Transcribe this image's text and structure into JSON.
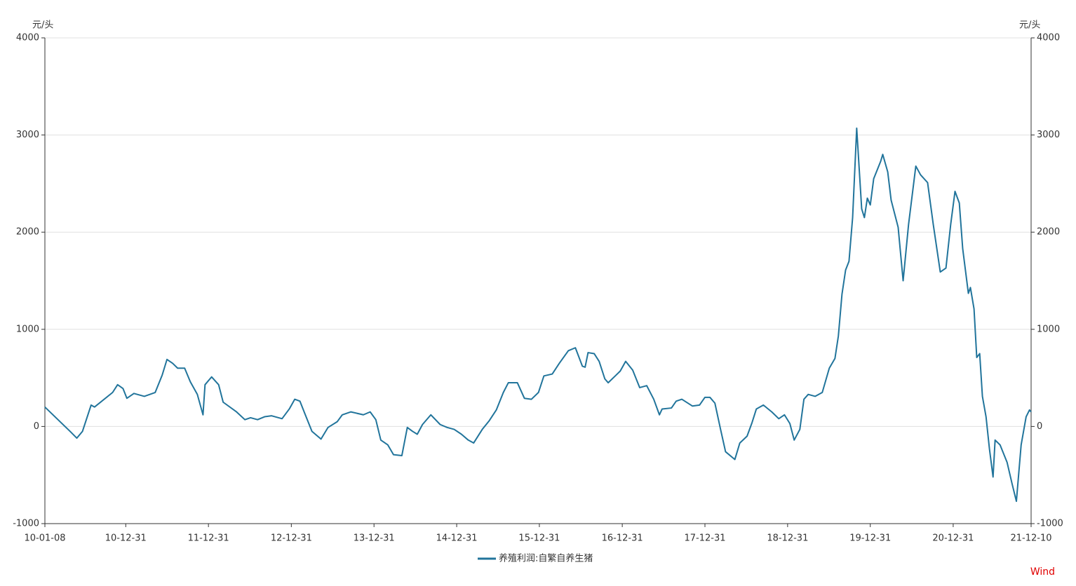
{
  "chart_data": {
    "type": "line",
    "y_label": "元/头",
    "y2_label": "元/头",
    "watermark": "Wind",
    "x": [
      "10-01-08",
      "10-04-29",
      "10-05-29",
      "10-06-23",
      "10-07-31",
      "10-08-15",
      "10-11-03",
      "10-11-25",
      "10-12-19",
      "11-01-05",
      "11-02-05",
      "11-03-23",
      "11-05-10",
      "11-06-10",
      "11-07-01",
      "11-07-26",
      "11-08-17",
      "11-09-17",
      "11-10-12",
      "11-11-12",
      "11-12-07",
      "11-12-16",
      "12-01-14",
      "12-02-14",
      "12-03-05",
      "12-05-03",
      "12-06-09",
      "12-07-04",
      "12-08-04",
      "12-09-04",
      "12-10-05",
      "12-11-20",
      "12-12-22",
      "13-01-15",
      "13-02-07",
      "13-03-01",
      "13-04-01",
      "13-05-11",
      "13-06-11",
      "13-07-22",
      "13-08-13",
      "13-09-20",
      "13-11-14",
      "13-12-14",
      "14-01-08",
      "14-01-30",
      "14-03-02",
      "14-03-27",
      "14-05-03",
      "14-05-27",
      "14-06-19",
      "14-07-10",
      "14-08-02",
      "14-09-08",
      "14-10-19",
      "14-11-19",
      "14-12-20",
      "15-01-21",
      "15-02-20",
      "15-03-16",
      "15-04-23",
      "15-05-24",
      "15-06-24",
      "15-07-25",
      "15-08-16",
      "15-09-25",
      "15-10-26",
      "15-11-26",
      "15-12-27",
      "16-01-20",
      "16-02-26",
      "16-03-28",
      "16-05-07",
      "16-06-07",
      "16-07-08",
      "16-07-20",
      "16-08-02",
      "16-08-29",
      "16-09-20",
      "16-10-15",
      "16-10-30",
      "16-11-30",
      "16-12-22",
      "17-01-15",
      "17-02-15",
      "17-03-18",
      "17-04-18",
      "17-05-19",
      "17-06-13",
      "17-06-25",
      "17-08-05",
      "17-08-26",
      "17-09-20",
      "17-11-06",
      "17-12-07",
      "17-12-31",
      "18-01-22",
      "18-02-13",
      "18-03-10",
      "18-04-01",
      "18-05-12",
      "18-06-03",
      "18-07-05",
      "18-07-27",
      "18-08-15",
      "18-09-15",
      "18-10-22",
      "18-11-22",
      "18-12-17",
      "19-01-10",
      "19-01-29",
      "19-02-23",
      "19-03-13",
      "19-04-01",
      "19-05-02",
      "19-06-02",
      "19-07-03",
      "19-07-28",
      "19-08-12",
      "19-08-28",
      "19-09-13",
      "19-09-28",
      "19-10-14",
      "19-11-01",
      "19-11-23",
      "19-12-05",
      "19-12-18",
      "19-12-31",
      "20-01-15",
      "20-02-15",
      "20-02-24",
      "20-03-17",
      "20-04-01",
      "20-05-02",
      "20-05-24",
      "20-06-17",
      "20-07-19",
      "20-08-09",
      "20-09-09",
      "20-10-04",
      "20-11-04",
      "20-11-29",
      "20-12-20",
      "21-01-08",
      "21-01-27",
      "21-02-11",
      "21-03-08",
      "21-03-17",
      "21-04-02",
      "21-04-14",
      "21-04-27",
      "21-05-09",
      "21-05-25",
      "21-06-09",
      "21-06-25",
      "21-07-04",
      "21-07-26",
      "21-08-26",
      "21-09-17",
      "21-10-06",
      "21-10-27",
      "21-11-18",
      "21-12-03",
      "21-12-10"
    ],
    "series": [
      {
        "name": "养殖利润:自繁自养生猪",
        "color": "#21749b",
        "values": [
          200,
          -50,
          -120,
          -50,
          220,
          200,
          350,
          430,
          390,
          290,
          340,
          310,
          350,
          530,
          690,
          650,
          600,
          600,
          460,
          330,
          120,
          430,
          510,
          430,
          250,
          150,
          70,
          90,
          70,
          100,
          110,
          80,
          180,
          280,
          260,
          130,
          -50,
          -130,
          -10,
          50,
          120,
          150,
          120,
          150,
          70,
          -140,
          -190,
          -290,
          -300,
          -10,
          -50,
          -80,
          20,
          120,
          20,
          -10,
          -30,
          -80,
          -140,
          -170,
          -30,
          60,
          170,
          350,
          450,
          450,
          290,
          280,
          350,
          520,
          540,
          650,
          780,
          810,
          620,
          610,
          760,
          750,
          670,
          490,
          450,
          520,
          570,
          670,
          580,
          400,
          420,
          280,
          120,
          180,
          190,
          260,
          280,
          210,
          220,
          300,
          300,
          240,
          -30,
          -260,
          -340,
          -170,
          -100,
          40,
          180,
          220,
          150,
          80,
          120,
          30,
          -140,
          -30,
          280,
          330,
          310,
          350,
          600,
          700,
          930,
          1360,
          1610,
          1700,
          2150,
          3070,
          2240,
          2150,
          2350,
          2280,
          2550,
          2730,
          2800,
          2620,
          2330,
          2050,
          1500,
          2080,
          2680,
          2590,
          2510,
          2080,
          1590,
          1630,
          2080,
          2420,
          2300,
          1830,
          1370,
          1430,
          1210,
          710,
          750,
          310,
          100,
          -230,
          -520,
          -140,
          -190,
          -370,
          -590,
          -770,
          -190,
          100,
          170,
          150
        ]
      }
    ],
    "xlim": [
      "10-01-08",
      "21-12-10"
    ],
    "xticks": [
      "10-01-08",
      "10-12-31",
      "11-12-31",
      "12-12-31",
      "13-12-31",
      "14-12-31",
      "15-12-31",
      "16-12-31",
      "17-12-31",
      "18-12-31",
      "19-12-31",
      "20-12-31",
      "21-12-10"
    ],
    "ylim": [
      -1000,
      4000
    ],
    "yticks": [
      -1000,
      0,
      1000,
      2000,
      3000,
      4000
    ],
    "y2lim": [
      -1000,
      4000
    ],
    "y2ticks": [
      -1000,
      0,
      1000,
      2000,
      3000,
      4000
    ],
    "grid": true,
    "legend": "bottom"
  }
}
